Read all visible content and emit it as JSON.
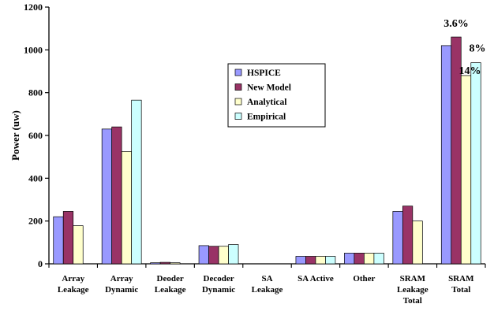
{
  "chart_data": {
    "type": "bar",
    "title": "",
    "xlabel": "",
    "ylabel": "Power (uw)",
    "ylim": [
      0,
      1200
    ],
    "yticks": [
      0,
      200,
      400,
      600,
      800,
      1000,
      1200
    ],
    "grid": false,
    "legend_position": "top-center",
    "categories": [
      [
        "Array",
        "Leakage"
      ],
      [
        "Array",
        "Dynamic"
      ],
      [
        "Deoder",
        "Leakage"
      ],
      [
        "Decoder",
        "Dynamic"
      ],
      [
        "SA",
        "Leakage"
      ],
      [
        "SA Active"
      ],
      [
        "Other"
      ],
      [
        "SRAM",
        "Leakage",
        "Total"
      ],
      [
        "SRAM",
        "Total"
      ]
    ],
    "series": [
      {
        "name": "HSPICE",
        "color": "#9999FF",
        "values": [
          220,
          630,
          5,
          85,
          0,
          35,
          50,
          245,
          1020
        ]
      },
      {
        "name": "New Model",
        "color": "#993366",
        "values": [
          245,
          640,
          7,
          82,
          0,
          35,
          50,
          270,
          1060
        ]
      },
      {
        "name": "Analytical",
        "color": "#FFFFCC",
        "values": [
          178,
          525,
          5,
          82,
          0,
          35,
          50,
          200,
          880
        ]
      },
      {
        "name": "Empirical",
        "color": "#CCFFFF",
        "values": [
          0,
          765,
          0,
          90,
          0,
          35,
          50,
          0,
          940
        ]
      }
    ],
    "annotations": [
      "3.6%",
      "14%",
      "8%"
    ]
  }
}
